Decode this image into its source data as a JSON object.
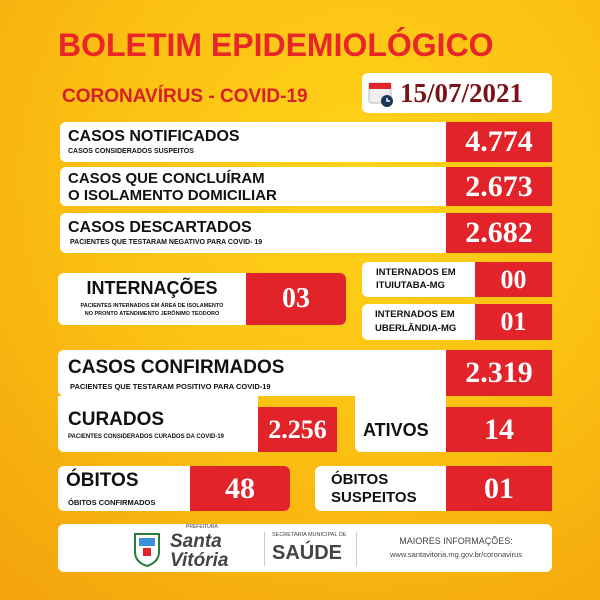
{
  "header": {
    "title": "BOLETIM EPIDEMIOLÓGICO",
    "subtitle": "CORONAVÍRUS - COVID-19",
    "date": "15/07/2021"
  },
  "rows": [
    {
      "label": "CASOS NOTIFICADOS",
      "sub": "CASOS CONSIDERADOS SUSPEITOS",
      "value": "4.774"
    },
    {
      "label": "CASOS QUE CONCLUÍRAM",
      "label2": "O ISOLAMENTO DOMICILIAR",
      "value": "2.673"
    },
    {
      "label": "CASOS DESCARTADOS",
      "sub": "PACIENTES QUE TESTARAM NEGATIVO PARA COVID- 19",
      "value": "2.682"
    }
  ],
  "internacoes": {
    "label": "INTERNAÇÕES",
    "sub1": "PACIENTES INTERNADOS EM ÁREA DE ISOLAMENTO",
    "sub2": "NO PRONTO ATENDIMENTO JERÔNIMO TEODORO",
    "value": "03"
  },
  "ituiutaba": {
    "label1": "INTERNADOS EM",
    "label2": "ITUIUTABA-MG",
    "value": "00"
  },
  "uberlandia": {
    "label1": "INTERNADOS EM",
    "label2": "UBERLÂNDIA-MG",
    "value": "01"
  },
  "confirmados": {
    "label": "CASOS CONFIRMADOS",
    "sub": "PACIENTES QUE TESTARAM POSITIVO PARA COVID-19",
    "value": "2.319"
  },
  "curados": {
    "label": "CURADOS",
    "sub": "PACIENTES CONSIDERADOS CURADOS DA COVID-19",
    "value": "2.256"
  },
  "ativos": {
    "label": "ATIVOS",
    "value": "14"
  },
  "obitos": {
    "label": "ÓBITOS",
    "sub": "ÓBITOS CONFIRMADOS",
    "value": "48"
  },
  "obitos_suspeitos": {
    "label1": "ÓBITOS",
    "label2": "SUSPEITOS",
    "value": "01"
  },
  "footer": {
    "logo_prefeitura": "PREFEITURA",
    "logo_name1": "Santa",
    "logo_name2": "Vitória",
    "secretaria": "SECRETARIA MUNICIPAL DE",
    "saude": "SAÚDE",
    "more_info": "MAIORES INFORMAÇÕES:",
    "url": "www.santavitoria.mg.gov.br/coronavirus"
  },
  "colors": {
    "red": "#e3232a",
    "title_red": "#e8262a",
    "date": "#7a1418",
    "yellow": "#fbc212"
  }
}
